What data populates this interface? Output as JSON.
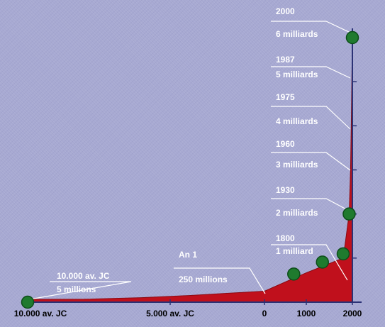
{
  "chart_data": {
    "type": "area",
    "title": "",
    "xlabel": "",
    "ylabel": "",
    "x_tick_labels": [
      "10.000 av. JC",
      "5.000 av. JC",
      "0",
      "1000",
      "2000"
    ],
    "series": [
      {
        "values": [
          {
            "year": -10000,
            "population_millions": 5
          },
          {
            "year": 1,
            "population_millions": 250
          },
          {
            "year": 1800,
            "population_millions": 1000
          },
          {
            "year": 1930,
            "population_millions": 2000
          },
          {
            "year": 1960,
            "population_millions": 3000
          },
          {
            "year": 1975,
            "population_millions": 4000
          },
          {
            "year": 1987,
            "population_millions": 5000
          },
          {
            "year": 2000,
            "population_millions": 6000
          }
        ]
      }
    ],
    "annotations": [
      {
        "year": -10000,
        "line1": "10.000 av. JC",
        "line2": "5 millions"
      },
      {
        "year": 1,
        "line1": "An 1",
        "line2": "250 millions"
      },
      {
        "year": 1800,
        "line1": "1800",
        "line2": "1 milliard"
      },
      {
        "year": 1930,
        "line1": "1930",
        "line2": "2 milliards"
      },
      {
        "year": 1960,
        "line1": "1960",
        "line2": "3 milliards"
      },
      {
        "year": 1975,
        "line1": "1975",
        "line2": "4 milliards"
      },
      {
        "year": 1987,
        "line1": "1987",
        "line2": "5 milliards"
      },
      {
        "year": 2000,
        "line1": "2000",
        "line2": "6 milliards"
      }
    ],
    "highlighted_points": [
      -10000,
      700,
      1350,
      1800,
      1930,
      2000
    ],
    "colors": {
      "background": "#a7a9d2",
      "area": "#c0101c",
      "marker": "#1f7a2e",
      "leader_line": "#ffffff",
      "axis": "#2b3275"
    }
  }
}
